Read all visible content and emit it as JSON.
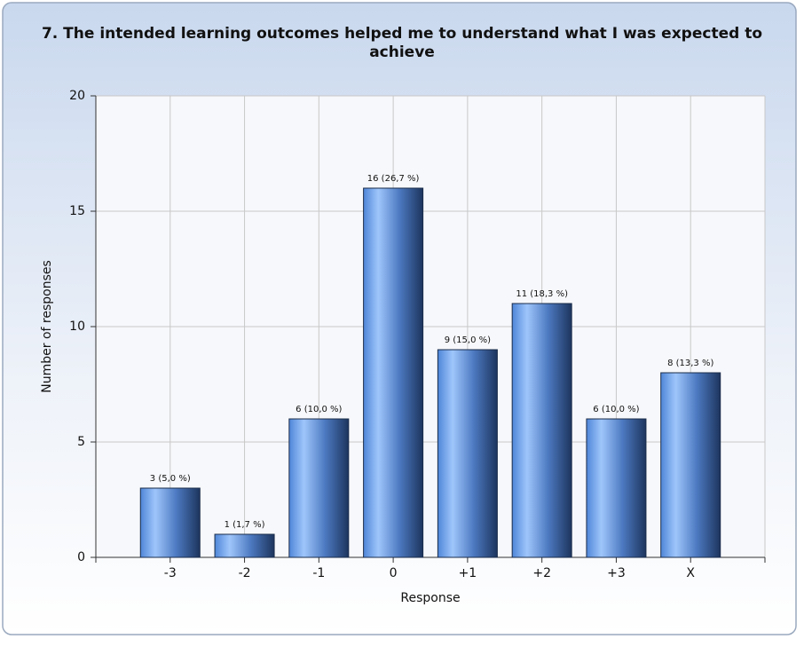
{
  "chart_data": {
    "type": "bar",
    "title": "7. The intended learning outcomes helped me to understand what I was expected to achieve",
    "x_label": "Response",
    "y_label": "Number of responses",
    "categories": [
      "-3",
      "-2",
      "-1",
      "0",
      "+1",
      "+2",
      "+3",
      "X"
    ],
    "values": [
      3,
      1,
      6,
      16,
      9,
      11,
      6,
      8
    ],
    "value_labels": [
      "3 (5,0 %)",
      "1 (1,7 %)",
      "6 (10,0 %)",
      "16 (26,7 %)",
      "9 (15,0 %)",
      "11 (18,3 %)",
      "6 (10,0 %)",
      "8 (13,3 %)"
    ],
    "color": "#4f86d8",
    "ylim": [
      0,
      20
    ],
    "yticks": [
      0,
      5,
      10,
      15,
      20
    ],
    "grid": true
  }
}
